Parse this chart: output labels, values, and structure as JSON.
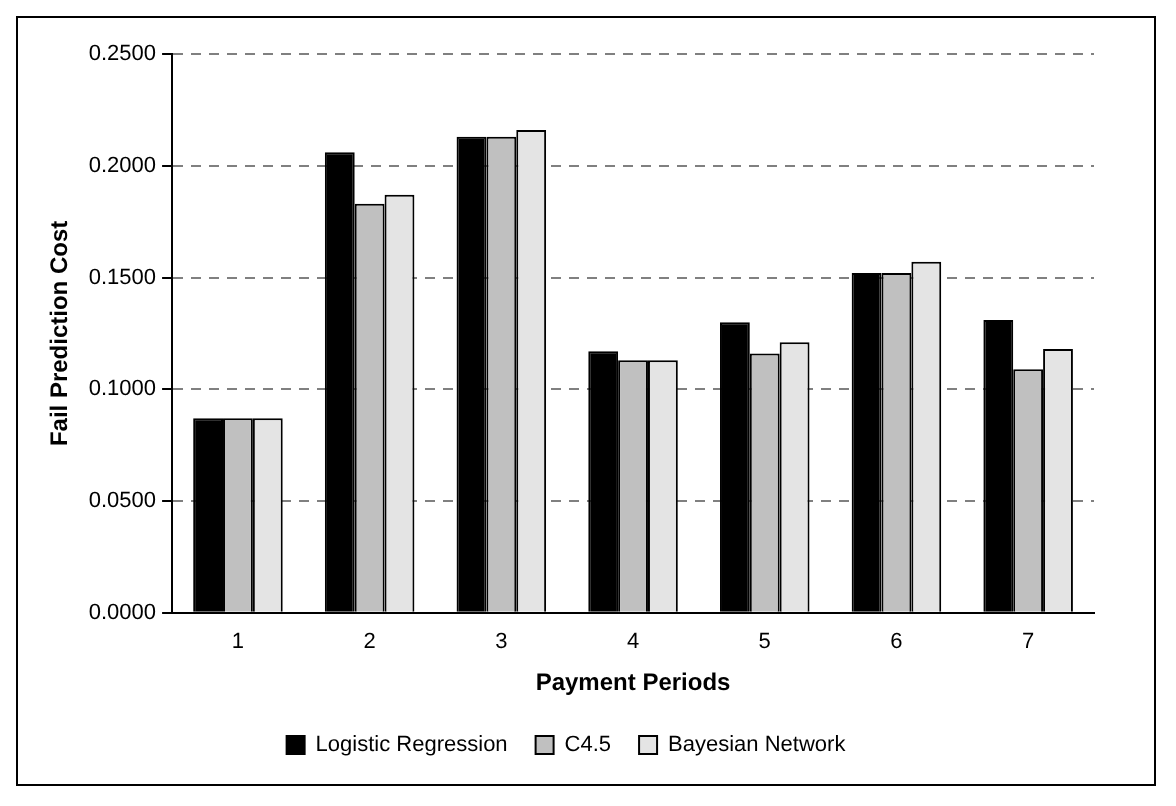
{
  "chart_data": {
    "type": "bar",
    "xlabel": "Payment Periods",
    "ylabel": "Fail Prediction Cost",
    "categories": [
      "1",
      "2",
      "3",
      "4",
      "5",
      "6",
      "7"
    ],
    "series": [
      {
        "name": "Logistic Regression",
        "color": "#000000",
        "values": [
          0.087,
          0.206,
          0.213,
          0.117,
          0.13,
          0.152,
          0.131
        ]
      },
      {
        "name": "C4.5",
        "color": "#c0c0c0",
        "values": [
          0.087,
          0.183,
          0.213,
          0.113,
          0.116,
          0.152,
          0.109
        ]
      },
      {
        "name": "Bayesian Network",
        "color": "#e4e4e4",
        "values": [
          0.087,
          0.187,
          0.216,
          0.113,
          0.121,
          0.157,
          0.118
        ]
      }
    ],
    "ylim": [
      0,
      0.25
    ],
    "yticks": [
      {
        "value": 0,
        "label": "0.0000"
      },
      {
        "value": 0.05,
        "label": "0.0500"
      },
      {
        "value": 0.1,
        "label": "0.1000"
      },
      {
        "value": 0.15,
        "label": "0.1500"
      },
      {
        "value": 0.2,
        "label": "0.2000"
      },
      {
        "value": 0.25,
        "label": "0.2500"
      }
    ],
    "grid": "y",
    "legend": "bottom"
  }
}
